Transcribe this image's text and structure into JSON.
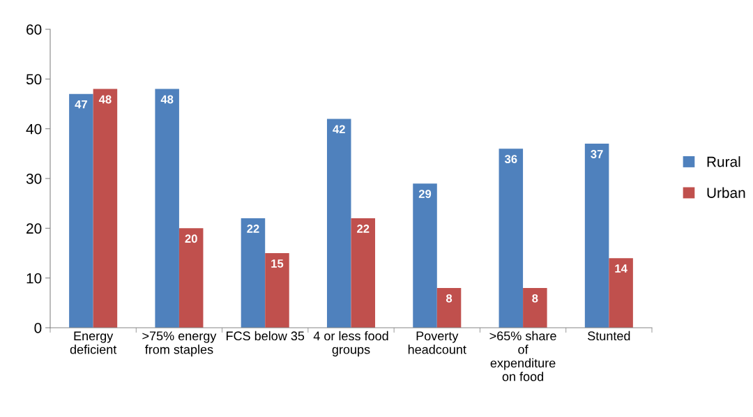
{
  "chart_data": {
    "type": "bar",
    "categories": [
      "Energy\ndeficient",
      ">75% energy\nfrom staples",
      "FCS below 35",
      "4 or less food\ngroups",
      "Poverty\nheadcount",
      ">65% share\nof\nexpenditure\non food",
      "Stunted"
    ],
    "series": [
      {
        "name": "Rural",
        "color": "#4f81bd",
        "values": [
          47,
          48,
          22,
          42,
          29,
          36,
          37
        ]
      },
      {
        "name": "Urban",
        "color": "#c0504d",
        "values": [
          48,
          20,
          15,
          22,
          8,
          8,
          14
        ]
      }
    ],
    "ylim": [
      0,
      60
    ],
    "yticks": [
      0,
      10,
      20,
      30,
      40,
      50,
      60
    ],
    "grid": false,
    "legend": "right",
    "data_labels": true
  }
}
